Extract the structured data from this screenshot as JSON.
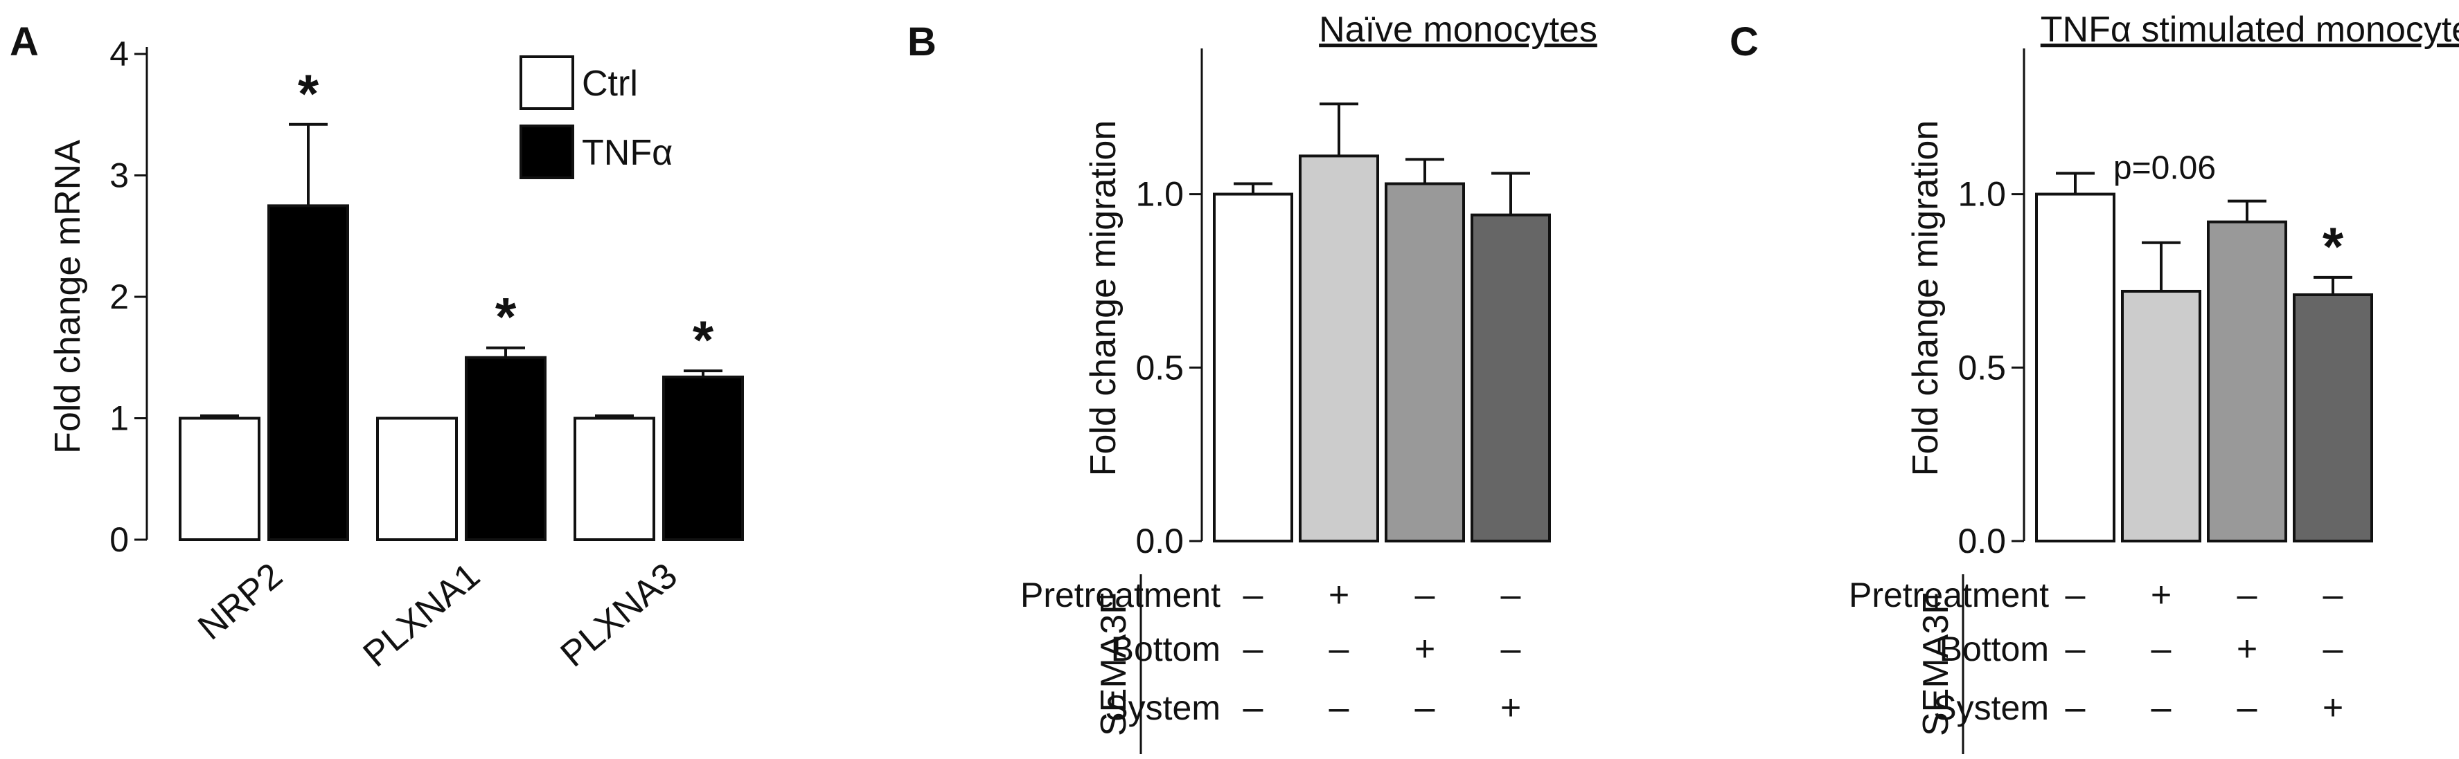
{
  "chart_data": [
    {
      "type": "bar",
      "panel": "A",
      "categories": [
        "NRP2",
        "PLXNA1",
        "PLXNA3"
      ],
      "series": [
        {
          "name": "Ctrl",
          "values": [
            1.0,
            1.0,
            1.0
          ],
          "errors": [
            0.02,
            0.0,
            0.02
          ],
          "color": "#ffffff"
        },
        {
          "name": "TNFα",
          "values": [
            2.75,
            1.5,
            1.34
          ],
          "errors": [
            0.67,
            0.08,
            0.05
          ],
          "color": "#000000"
        }
      ],
      "significance": [
        "*",
        "*",
        "*"
      ],
      "ylabel": "Fold change mRNA",
      "ylim": [
        0,
        4
      ],
      "yticks": [
        "0",
        "1",
        "2",
        "3",
        "4"
      ],
      "legend_position": "top-right",
      "grid": false
    },
    {
      "type": "bar",
      "panel": "B",
      "title": "Naïve monocytes",
      "values": [
        1.0,
        1.11,
        1.03,
        0.94
      ],
      "errors": [
        0.03,
        0.15,
        0.07,
        0.12
      ],
      "colors": [
        "#ffffff",
        "#cccccc",
        "#999999",
        "#666666"
      ],
      "ylabel": "Fold change migration",
      "ylim": [
        0,
        1.4
      ],
      "yticks": [
        "0.0",
        "0.5",
        "1.0"
      ],
      "grid": false
    },
    {
      "type": "bar",
      "panel": "C",
      "title": "TNFα stimulated monocytes",
      "values": [
        1.0,
        0.72,
        0.92,
        0.71
      ],
      "errors": [
        0.06,
        0.14,
        0.06,
        0.05
      ],
      "colors": [
        "#ffffff",
        "#cccccc",
        "#999999",
        "#666666"
      ],
      "significance": [
        "",
        "",
        "",
        "*"
      ],
      "annotation": "p=0.06",
      "ylabel": "Fold change migration",
      "ylim": [
        0,
        1.4
      ],
      "yticks": [
        "0.0",
        "0.5",
        "1.0"
      ],
      "grid": false
    }
  ],
  "treatment_table": {
    "group_label": "SEMA3F",
    "rows": [
      {
        "label": "Pretreatment",
        "signs": [
          "–",
          "+",
          "–",
          "–"
        ]
      },
      {
        "label": "Bottom",
        "signs": [
          "–",
          "–",
          "+",
          "–"
        ]
      },
      {
        "label": "System",
        "signs": [
          "–",
          "–",
          "–",
          "+"
        ]
      }
    ]
  }
}
